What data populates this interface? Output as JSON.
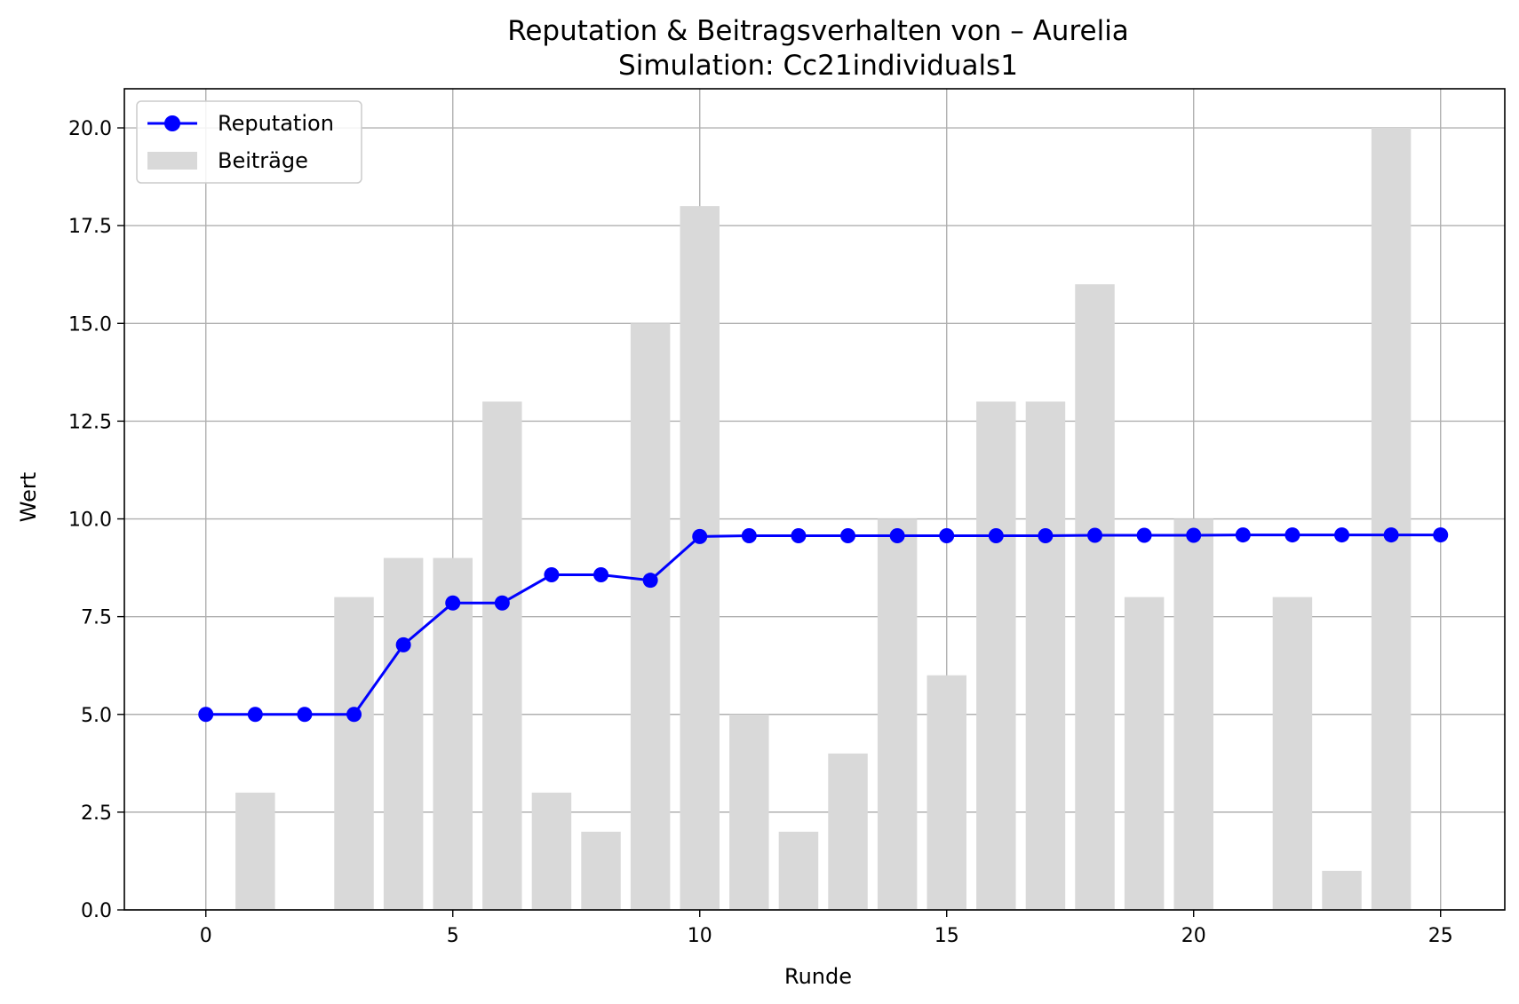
{
  "chart_data": {
    "type": "bar+line",
    "title": "Reputation & Beitragsverhalten von – Aurelia",
    "subtitle": "Simulation: Cc21individuals1",
    "xlabel": "Runde",
    "ylabel": "Wert",
    "xlim": [
      -1.65,
      26.3
    ],
    "ylim": [
      0,
      21
    ],
    "xticks": [
      0,
      5,
      10,
      15,
      20,
      25
    ],
    "xtick_labels": [
      "0",
      "5",
      "10",
      "15",
      "20",
      "25"
    ],
    "yticks": [
      0,
      2.5,
      5,
      7.5,
      10,
      12.5,
      15,
      17.5,
      20
    ],
    "ytick_labels": [
      "0.0",
      "2.5",
      "5.0",
      "7.5",
      "10.0",
      "12.5",
      "15.0",
      "17.5",
      "20.0"
    ],
    "grid": true,
    "legend_position": "top-left",
    "series": [
      {
        "name": "Reputation",
        "kind": "line",
        "color": "#0000ff",
        "marker": "circle",
        "x": [
          0,
          1,
          2,
          3,
          4,
          5,
          6,
          7,
          8,
          9,
          10,
          11,
          12,
          13,
          14,
          15,
          16,
          17,
          18,
          19,
          20,
          21,
          22,
          23,
          24,
          25
        ],
        "values": [
          5.0,
          5.0,
          5.0,
          5.0,
          6.78,
          7.85,
          7.85,
          8.57,
          8.57,
          8.43,
          9.55,
          9.57,
          9.57,
          9.57,
          9.57,
          9.57,
          9.57,
          9.57,
          9.58,
          9.58,
          9.58,
          9.59,
          9.59,
          9.59,
          9.59,
          9.59
        ]
      },
      {
        "name": "Beiträge",
        "kind": "bar",
        "color": "#d9d9d9",
        "x": [
          0,
          1,
          2,
          3,
          4,
          5,
          6,
          7,
          8,
          9,
          10,
          11,
          12,
          13,
          14,
          15,
          16,
          17,
          18,
          19,
          20,
          21,
          22,
          23,
          24,
          25
        ],
        "values": [
          0,
          3,
          0,
          8,
          9,
          9,
          13,
          3,
          2,
          15,
          18,
          5,
          2,
          4,
          10,
          6,
          13,
          13,
          16,
          8,
          10,
          0,
          8,
          1,
          20,
          0
        ]
      }
    ]
  }
}
